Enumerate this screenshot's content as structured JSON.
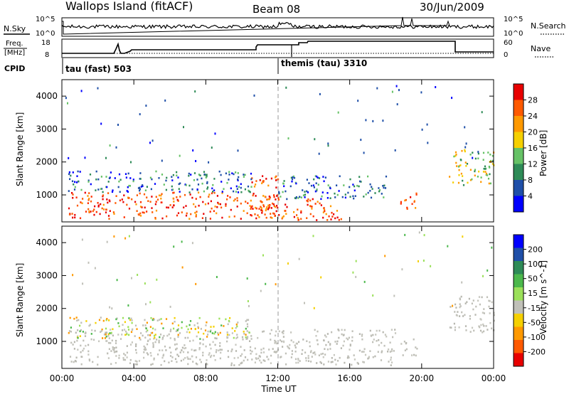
{
  "header": {
    "site": "Wallops Island (fitACF)",
    "beam": "Beam 08",
    "date": "30/Jun/2009"
  },
  "noise_panel": {
    "left_label": "N.Sky",
    "right_label": "N.Search",
    "left_ticks": [
      "10^5",
      "10^0"
    ],
    "right_ticks": [
      "10^5",
      "10^0"
    ]
  },
  "freq_panel": {
    "left_label_line1": "Freq.",
    "left_label_line2": "[MHz]",
    "right_label": "Nave",
    "left_ticks": [
      "18",
      "8"
    ],
    "right_ticks": [
      "60",
      "0"
    ]
  },
  "cpid": {
    "label": "CPID",
    "segments": [
      {
        "name": "tau (fast) 503",
        "start_hour": 0
      },
      {
        "name": "themis (tau) 3310",
        "start_hour": 12.0
      }
    ]
  },
  "colors": {
    "noise_line": "#000000",
    "grid_dash": "#999999",
    "ground_scatter": "#c0c0b8"
  },
  "chart_data": [
    {
      "type": "heatmap",
      "title": "",
      "ylabel": "Slant Range [km]",
      "xlabel": "Time UT",
      "xlim_hours": [
        0,
        24
      ],
      "ylim_km": [
        180,
        4500
      ],
      "x_ticks": [
        "00:00",
        "04:00",
        "08:00",
        "12:00",
        "16:00",
        "20:00",
        "00:00"
      ],
      "y_ticks": [
        1000,
        2000,
        3000,
        4000
      ],
      "colorbar_label": "Power [dB]",
      "colorbar_ticks": [
        "28",
        "24",
        "20",
        "16",
        "12",
        "8",
        "4"
      ],
      "colorbar_colors": [
        "#0000ff",
        "#1f4fa8",
        "#2e8b57",
        "#66c266",
        "#f5d000",
        "#ff9900",
        "#ff5a00",
        "#e80000"
      ],
      "scatter_regions": [
        {
          "t0": 0.3,
          "t1": 12.0,
          "r0": 300,
          "r1": 1100,
          "level": "high"
        },
        {
          "t0": 10.5,
          "t1": 12.0,
          "r0": 300,
          "r1": 1600,
          "level": "high"
        },
        {
          "t0": 12.0,
          "t1": 15.5,
          "r0": 250,
          "r1": 900,
          "level": "high"
        },
        {
          "t0": 0.3,
          "t1": 10.5,
          "r0": 1100,
          "r1": 1750,
          "level": "low"
        },
        {
          "t0": 12.0,
          "t1": 18.0,
          "r0": 900,
          "r1": 1600,
          "level": "low"
        },
        {
          "t0": 18.8,
          "t1": 19.8,
          "r0": 600,
          "r1": 1100,
          "level": "high"
        },
        {
          "t0": 21.5,
          "t1": 24.0,
          "r0": 1300,
          "r1": 2400,
          "level": "mid"
        }
      ]
    },
    {
      "type": "heatmap",
      "title": "",
      "ylabel": "Slant Range [km]",
      "xlabel": "Time UT",
      "xlim_hours": [
        0,
        24
      ],
      "ylim_km": [
        180,
        4500
      ],
      "x_ticks": [
        "00:00",
        "04:00",
        "08:00",
        "12:00",
        "16:00",
        "20:00",
        "00:00"
      ],
      "y_ticks": [
        1000,
        2000,
        3000,
        4000
      ],
      "colorbar_label": "Velocity [m s^-1]",
      "colorbar_ticks": [
        "200",
        "100",
        "50",
        "15",
        "-15",
        "-50",
        "-100",
        "-200"
      ],
      "colorbar_colors": [
        "#e80000",
        "#ff5a00",
        "#ff9900",
        "#f5d000",
        "#c0c0b8",
        "#9be05a",
        "#4cb84c",
        "#2e8b57",
        "#1f4fa8",
        "#0000ff"
      ],
      "scatter_regions": [
        {
          "t0": 0.3,
          "t1": 18.5,
          "r0": 300,
          "r1": 1400,
          "level": "ground"
        },
        {
          "t0": 0.3,
          "t1": 10.5,
          "r0": 1100,
          "r1": 1750,
          "level": "mixed"
        },
        {
          "t0": 21.5,
          "t1": 24.0,
          "r0": 1300,
          "r1": 2400,
          "level": "ground"
        },
        {
          "t0": 18.8,
          "t1": 19.8,
          "r0": 600,
          "r1": 1100,
          "level": "ground"
        }
      ]
    }
  ]
}
